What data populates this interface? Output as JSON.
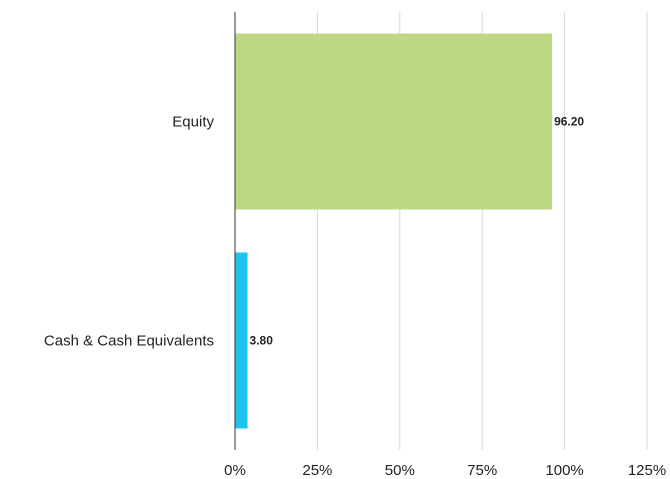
{
  "chart_data": {
    "type": "bar",
    "orientation": "horizontal",
    "title": "",
    "xlabel": "",
    "ylabel": "",
    "categories": [
      "Equity",
      "Cash & Cash Equivalents"
    ],
    "values": [
      96.2,
      3.8
    ],
    "value_labels": [
      "96.20",
      "3.80"
    ],
    "colors": [
      "#bdd882",
      "#1ec3ef"
    ],
    "xlim": [
      0,
      125
    ],
    "x_ticks": [
      0,
      25,
      50,
      75,
      100,
      125
    ],
    "x_tick_labels": [
      "0%",
      "25%",
      "50%",
      "75%",
      "100%",
      "125%"
    ],
    "grid": "vertical",
    "legend": "none"
  }
}
